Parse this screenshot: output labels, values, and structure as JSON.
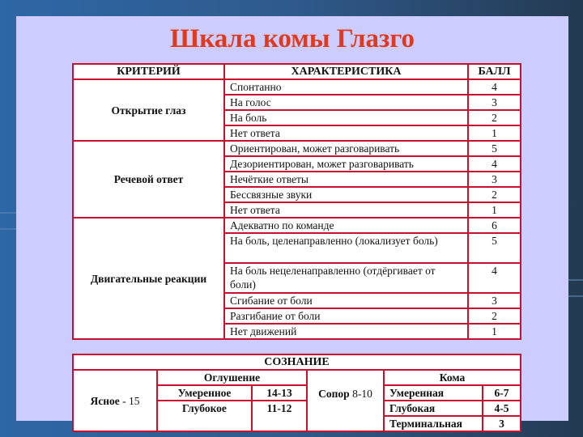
{
  "title": "Шкала комы Глазго",
  "headers": {
    "criterion": "КРИТЕРИЙ",
    "characteristic": "ХАРАКТЕРИСТИКА",
    "score": "БАЛЛ"
  },
  "groups": [
    {
      "criterion": "Открытие глаз",
      "rows": [
        {
          "text": "Спонтанно",
          "score": "4"
        },
        {
          "text": "На голос",
          "score": "3"
        },
        {
          "text": "На боль",
          "score": "2"
        },
        {
          "text": "Нет ответа",
          "score": "1"
        }
      ]
    },
    {
      "criterion": "Речевой ответ",
      "rows": [
        {
          "text": "Ориентирован, может разговаривать",
          "score": "5"
        },
        {
          "text": "Дезориентирован, может разговаривать",
          "score": "4"
        },
        {
          "text": "Нечёткие ответы",
          "score": "3"
        },
        {
          "text": "Бессвязные звуки",
          "score": "2"
        },
        {
          "text": "Нет ответа",
          "score": "1"
        }
      ]
    },
    {
      "criterion": "Двигательные реакции",
      "rows": [
        {
          "text": "Адекватно по команде",
          "score": "6"
        },
        {
          "text": "На боль, целенаправленно (локализует боль)",
          "score": "5"
        },
        {
          "text": "На боль нецеленаправленно (отдёргивает от боли)",
          "score": "4"
        },
        {
          "text": "Сгибание от боли",
          "score": "3"
        },
        {
          "text": "Разгибание от боли",
          "score": "2"
        },
        {
          "text": "Нет движений",
          "score": "1"
        }
      ]
    }
  ],
  "consciousness": {
    "heading": "СОЗНАНИЕ",
    "clear": {
      "label": "Ясное",
      "score": "- 15"
    },
    "stunning": {
      "label": "Оглушение",
      "moderate": "Умеренное",
      "moderate_score": "14-13",
      "deep": "Глубокое",
      "deep_score": "11-12"
    },
    "sopor": {
      "label": "Сопор",
      "score": "8-10"
    },
    "coma": {
      "label": "Кома",
      "moderate": "Умеренная",
      "moderate_score": "6-7",
      "deep": "Глубокая",
      "deep_score": "4-5",
      "terminal": "Терминальная",
      "terminal_score": "3"
    }
  }
}
